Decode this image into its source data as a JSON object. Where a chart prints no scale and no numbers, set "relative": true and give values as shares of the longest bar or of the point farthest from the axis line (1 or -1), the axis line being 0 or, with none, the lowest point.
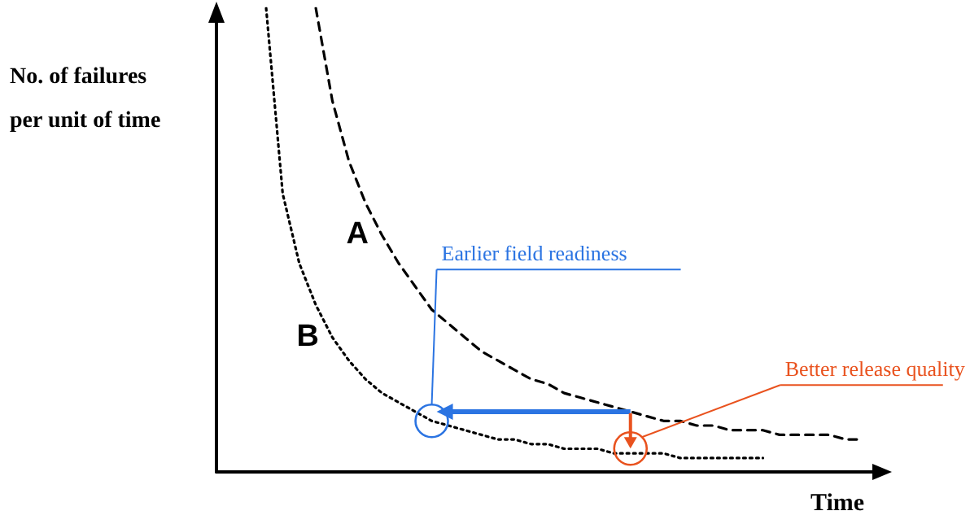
{
  "chart_data": {
    "type": "line",
    "relative": true,
    "xlabel": "Time",
    "ylabel": "No. of failures\nper unit of time",
    "categories": [
      null,
      null,
      null,
      null,
      null,
      null,
      null,
      null,
      null,
      null,
      null,
      null,
      null,
      null,
      null,
      null,
      null,
      null,
      null,
      null,
      null,
      null,
      null,
      null,
      null,
      null,
      null,
      null,
      null,
      null,
      null,
      null,
      null,
      null,
      null,
      null,
      null,
      null,
      null,
      null,
      null
    ],
    "series": [
      {
        "name": "A",
        "color": "#000000",
        "line_style": "dashed",
        "values": [
          null,
          null,
          null,
          null,
          null,
          null,
          1.0,
          0.8,
          0.67,
          0.58,
          0.51,
          0.45,
          0.4,
          0.35,
          0.32,
          0.29,
          0.26,
          0.24,
          0.22,
          0.2,
          0.19,
          0.17,
          0.16,
          0.15,
          0.14,
          0.13,
          0.12,
          0.11,
          0.11,
          0.1,
          0.1,
          0.09,
          0.09,
          0.09,
          0.08,
          0.08,
          0.08,
          0.08,
          0.07,
          0.07,
          null
        ]
      },
      {
        "name": "B",
        "color": "#000000",
        "line_style": "dotted",
        "values": [
          null,
          null,
          null,
          1.0,
          0.6,
          0.45,
          0.36,
          0.29,
          0.24,
          0.2,
          0.17,
          0.15,
          0.13,
          0.11,
          0.1,
          0.09,
          0.08,
          0.07,
          0.07,
          0.06,
          0.06,
          0.05,
          0.05,
          0.05,
          0.04,
          0.04,
          0.04,
          0.04,
          0.03,
          0.03,
          0.03,
          0.03,
          0.03,
          0.03,
          null,
          null,
          null,
          null,
          null,
          null,
          null
        ]
      }
    ],
    "annotations": [
      "Earlier field readiness",
      "Better release quality"
    ],
    "legend": false,
    "marker": "none"
  }
}
